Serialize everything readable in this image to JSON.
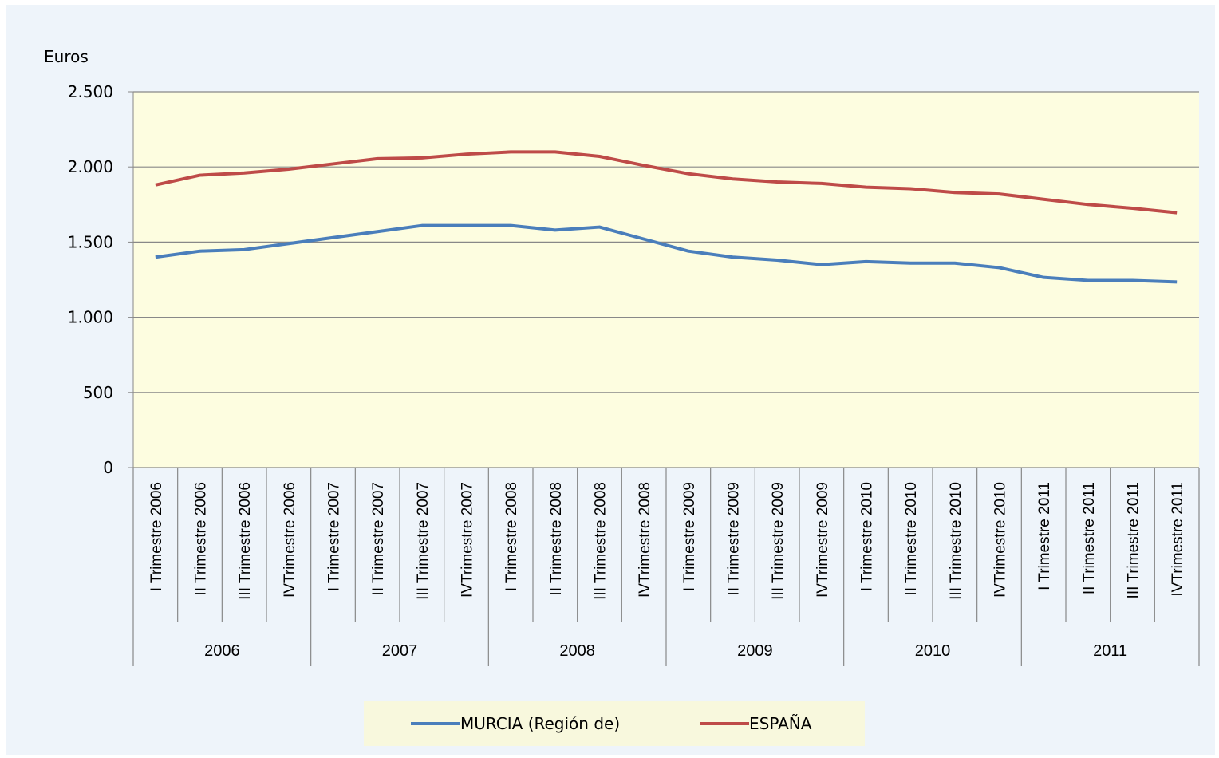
{
  "chart_data": {
    "type": "line",
    "y_label": "Euros",
    "categories": [
      "I Trimestre 2006",
      "II Trimestre 2006",
      "III Trimestre 2006",
      "IVTrimestre 2006",
      "I Trimestre 2007",
      "II Trimestre 2007",
      "III Trimestre 2007",
      "IVTrimestre 2007",
      "I Trimestre 2008",
      "II Trimestre 2008",
      "III Trimestre 2008",
      "IVTrimestre 2008",
      "I Trimestre 2009",
      "II Trimestre 2009",
      "III Trimestre 2009",
      "IVTrimestre 2009",
      "I Trimestre 2010",
      "II Trimestre 2010",
      "III Trimestre 2010",
      "IVTrimestre 2010",
      "I Trimestre 2011",
      "II Trimestre 2011",
      "III Trimestre 2011",
      "IVTrimestre 2011"
    ],
    "year_groups": [
      "2006",
      "2007",
      "2008",
      "2009",
      "2010",
      "2011"
    ],
    "series": [
      {
        "name": "MURCIA (Región de)",
        "color": "#4a7ebb",
        "values": [
          1400,
          1440,
          1450,
          1490,
          1530,
          1570,
          1610,
          1610,
          1610,
          1580,
          1600,
          1520,
          1440,
          1400,
          1380,
          1350,
          1370,
          1360,
          1360,
          1330,
          1265,
          1245,
          1245,
          1235
        ]
      },
      {
        "name": "ESPAÑA",
        "color": "#be4b48",
        "values": [
          1880,
          1945,
          1960,
          1985,
          2020,
          2055,
          2060,
          2085,
          2100,
          2100,
          2070,
          2010,
          1955,
          1920,
          1900,
          1890,
          1865,
          1855,
          1830,
          1820,
          1785,
          1750,
          1725,
          1695
        ]
      }
    ],
    "ylim": [
      0,
      2500
    ],
    "yticks": [
      0,
      500,
      {
        "value": 1000,
        "label": "1.000"
      },
      {
        "value": 1500,
        "label": "1.500"
      },
      {
        "value": 2000,
        "label": "2.000"
      },
      {
        "value": 2500,
        "label": "2.500"
      }
    ],
    "grid": true,
    "legend": "bottom"
  }
}
